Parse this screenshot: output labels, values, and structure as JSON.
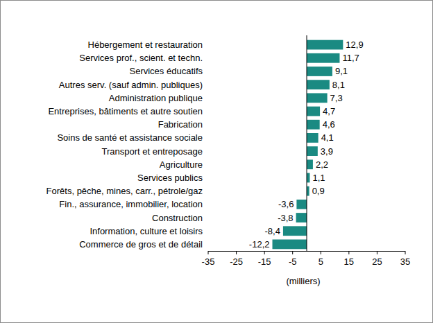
{
  "chart_data": {
    "type": "bar",
    "orientation": "horizontal",
    "categories": [
      "Hébergement et restauration",
      "Services prof., scient. et techn.",
      "Services éducatifs",
      "Autres serv. (sauf admin. publiques)",
      "Administration publique",
      "Entreprises, bâtiments et autre soutien",
      "Fabrication",
      "Soins de santé et assistance sociale",
      "Transport et entreposage",
      "Agriculture",
      "Services publics",
      "Forêts, pêche, mines, carr., pétrole/gaz",
      "Fin., assurance, immobilier, location",
      "Construction",
      "Information, culture et loisirs",
      "Commerce de gros et de détail"
    ],
    "values": [
      12.9,
      11.7,
      9.1,
      8.1,
      7.3,
      4.7,
      4.6,
      4.1,
      3.9,
      2.2,
      1.1,
      0.9,
      -3.6,
      -3.8,
      -8.4,
      -12.2
    ],
    "value_labels": [
      "12,9",
      "11,7",
      "9,1",
      "8,1",
      "7,3",
      "4,7",
      "4,6",
      "4,1",
      "3,9",
      "2,2",
      "1,1",
      "0,9",
      "-3,6",
      "-3,8",
      "-8,4",
      "-12,2"
    ],
    "color": "#1a8a82",
    "data_labels": true,
    "xlabel": "(milliers)",
    "xlim": [
      -35,
      35
    ],
    "xticks": [
      -35,
      -25,
      -15,
      -5,
      5,
      15,
      25,
      35
    ],
    "grid": false
  }
}
